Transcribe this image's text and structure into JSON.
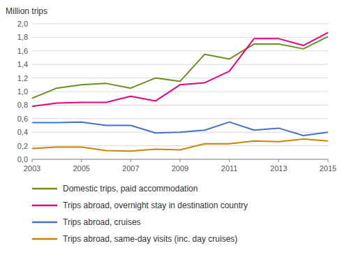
{
  "chart_data": {
    "type": "line",
    "y_label": "Million trips",
    "x": [
      2003,
      2004,
      2005,
      2006,
      2007,
      2008,
      2009,
      2010,
      2011,
      2012,
      2013,
      2014,
      2015
    ],
    "series": [
      {
        "name": "Domestic trips, paid accommodation",
        "color": "#6b8e23",
        "values": [
          0.9,
          1.05,
          1.1,
          1.12,
          1.05,
          1.2,
          1.15,
          1.55,
          1.48,
          1.7,
          1.7,
          1.63,
          1.81
        ]
      },
      {
        "name": "Trips abroad, overnight stay in destination country",
        "color": "#e8007f",
        "values": [
          0.78,
          0.83,
          0.84,
          0.84,
          0.93,
          0.86,
          1.1,
          1.13,
          1.3,
          1.78,
          1.78,
          1.68,
          1.87
        ]
      },
      {
        "name": "Trips abroad, cruises",
        "color": "#4472c4",
        "values": [
          0.54,
          0.54,
          0.55,
          0.5,
          0.5,
          0.39,
          0.4,
          0.43,
          0.55,
          0.43,
          0.46,
          0.35,
          0.4
        ]
      },
      {
        "name": "Trips abroad, same-day visits (inc. day cruises)",
        "color": "#c8850a",
        "values": [
          0.16,
          0.18,
          0.18,
          0.13,
          0.12,
          0.15,
          0.14,
          0.23,
          0.23,
          0.27,
          0.26,
          0.3,
          0.27
        ]
      }
    ],
    "xlim": [
      2003,
      2015
    ],
    "xticks": [
      2003,
      2005,
      2007,
      2009,
      2011,
      2013,
      2015
    ],
    "ylim": [
      0.0,
      2.0
    ],
    "yticks": [
      {
        "value": 0.0,
        "label": "0,0"
      },
      {
        "value": 0.2,
        "label": "0,2"
      },
      {
        "value": 0.4,
        "label": "0,4"
      },
      {
        "value": 0.6,
        "label": "0,6"
      },
      {
        "value": 0.8,
        "label": "0,8"
      },
      {
        "value": 1.0,
        "label": "1,0"
      },
      {
        "value": 1.2,
        "label": "1,2"
      },
      {
        "value": 1.4,
        "label": "1,4"
      },
      {
        "value": 1.6,
        "label": "1,6"
      },
      {
        "value": 1.8,
        "label": "1,8"
      },
      {
        "value": 2.0,
        "label": "2,0"
      }
    ],
    "grid": true,
    "legend": "bottom"
  }
}
